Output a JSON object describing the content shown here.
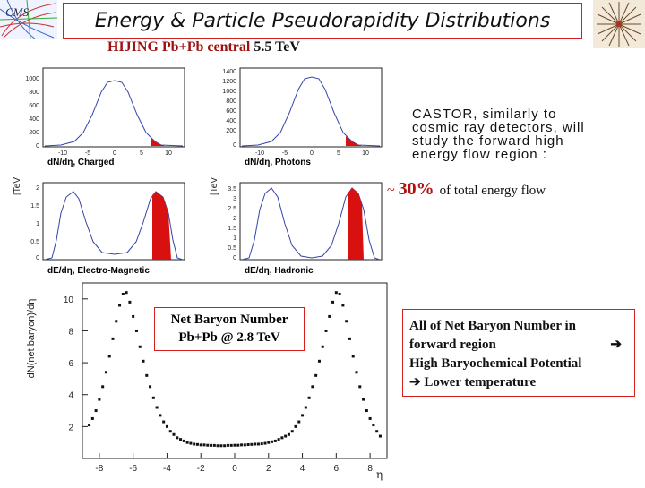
{
  "title": "Energy & Particle Pseudorapidity Distributions",
  "subtitle": {
    "generator": "HIJING Pb+Pb central",
    "energy": "5.5 TeV"
  },
  "small_plots": [
    {
      "label": "dN/dη, Charged",
      "ylabel": "",
      "yticks": [
        "1000",
        "800",
        "600",
        "400",
        "200",
        "0"
      ],
      "xticks": [
        "-10",
        "-5",
        "0",
        "5",
        "10"
      ]
    },
    {
      "label": "dN/dη, Photons",
      "ylabel": "",
      "yticks": [
        "1400",
        "1200",
        "1000",
        "800",
        "600",
        "400",
        "200",
        "0"
      ],
      "xticks": [
        "-10",
        "-5",
        "0",
        "5",
        "10"
      ]
    },
    {
      "label": "dE/dη, Electro-Magnetic",
      "ylabel": "[TeV]",
      "yticks": [
        "2",
        "1.5",
        "1",
        "0.5",
        "0"
      ],
      "xticks": [
        "-10",
        "-5",
        "0",
        "5",
        "10"
      ]
    },
    {
      "label": "dE/dη, Hadronic",
      "ylabel": "[TeV]",
      "yticks": [
        "3.5",
        "3",
        "2.5",
        "2",
        "1.5",
        "1",
        "0.5",
        "0"
      ],
      "xticks": [
        "-10",
        "-5",
        "0",
        "5",
        "10"
      ]
    }
  ],
  "castor_note": {
    "lines": [
      "CASTOR, similarly to",
      "cosmic ray detectors, will",
      "study the forward high",
      "energy flow region :"
    ]
  },
  "energy_fraction": {
    "prefix": "~ ",
    "percent": "30%",
    "text": "of total energy flow"
  },
  "net_baryon_box": {
    "line1": "Net Baryon Number",
    "line2": "Pb+Pb @ 2.8 TeV"
  },
  "conclusion": {
    "line1": "All of Net Baryon Number in",
    "line2": "forward region",
    "arrow": "➔",
    "line3": "High Baryochemical Potential",
    "line4": "Lower temperature"
  },
  "chart_data": {
    "type": "scatter",
    "title": "",
    "xlabel": "η",
    "ylabel": "dN(net baryon)/dη",
    "xlim": [
      -9,
      9
    ],
    "ylim": [
      0,
      11
    ],
    "xticks": [
      -8,
      -6,
      -4,
      -2,
      0,
      2,
      4,
      6,
      8
    ],
    "yticks": [
      2,
      4,
      6,
      8,
      10
    ],
    "x": [
      -8.6,
      -8.4,
      -8.2,
      -8.0,
      -7.8,
      -7.6,
      -7.4,
      -7.2,
      -7.0,
      -6.8,
      -6.6,
      -6.4,
      -6.2,
      -6.0,
      -5.8,
      -5.6,
      -5.4,
      -5.2,
      -5.0,
      -4.8,
      -4.6,
      -4.4,
      -4.2,
      -4.0,
      -3.8,
      -3.6,
      -3.4,
      -3.2,
      -3.0,
      -2.8,
      -2.6,
      -2.4,
      -2.2,
      -2.0,
      -1.8,
      -1.6,
      -1.4,
      -1.2,
      -1.0,
      -0.8,
      -0.6,
      -0.4,
      -0.2,
      0.0,
      0.2,
      0.4,
      0.6,
      0.8,
      1.0,
      1.2,
      1.4,
      1.6,
      1.8,
      2.0,
      2.2,
      2.4,
      2.6,
      2.8,
      3.0,
      3.2,
      3.4,
      3.6,
      3.8,
      4.0,
      4.2,
      4.4,
      4.6,
      4.8,
      5.0,
      5.2,
      5.4,
      5.6,
      5.8,
      6.0,
      6.2,
      6.4,
      6.6,
      6.8,
      7.0,
      7.2,
      7.4,
      7.6,
      7.8,
      8.0,
      8.2,
      8.4,
      8.6
    ],
    "y": [
      2.1,
      2.5,
      3.0,
      3.7,
      4.5,
      5.4,
      6.4,
      7.5,
      8.6,
      9.6,
      10.3,
      10.4,
      9.8,
      8.9,
      8.0,
      7.0,
      6.1,
      5.2,
      4.5,
      3.8,
      3.2,
      2.7,
      2.3,
      2.0,
      1.7,
      1.5,
      1.3,
      1.2,
      1.1,
      1.0,
      0.95,
      0.9,
      0.88,
      0.85,
      0.85,
      0.83,
      0.82,
      0.82,
      0.8,
      0.8,
      0.8,
      0.82,
      0.82,
      0.83,
      0.83,
      0.85,
      0.85,
      0.87,
      0.88,
      0.9,
      0.9,
      0.92,
      0.95,
      1.0,
      1.05,
      1.1,
      1.2,
      1.3,
      1.4,
      1.5,
      1.7,
      2.0,
      2.3,
      2.7,
      3.2,
      3.8,
      4.5,
      5.2,
      6.1,
      7.0,
      8.0,
      8.9,
      9.8,
      10.4,
      10.3,
      9.6,
      8.6,
      7.5,
      6.4,
      5.4,
      4.5,
      3.7,
      3.0,
      2.5,
      2.1,
      1.7,
      1.4
    ]
  }
}
